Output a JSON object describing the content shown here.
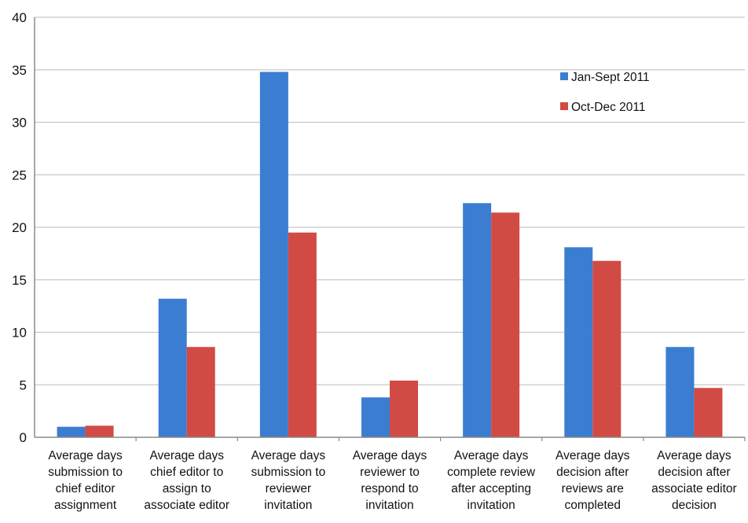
{
  "chart_data": {
    "type": "bar",
    "title": "",
    "xlabel": "",
    "ylabel": "",
    "ylim": [
      0,
      40
    ],
    "yticks": [
      0,
      5,
      10,
      15,
      20,
      25,
      30,
      35,
      40
    ],
    "grid": true,
    "legend_position": "top-right",
    "categories": [
      [
        "Average days",
        "submission to",
        "chief editor",
        "assignment"
      ],
      [
        "Average days",
        "chief editor to",
        "assign to",
        "associate editor"
      ],
      [
        "Average days",
        "submission to",
        "reviewer",
        "invitation"
      ],
      [
        "Average days",
        "reviewer to",
        "respond to",
        "invitation"
      ],
      [
        "Average days",
        "complete review",
        "after accepting",
        "invitation"
      ],
      [
        "Average days",
        "decision after",
        "reviews are",
        "completed"
      ],
      [
        "Average days",
        "decision after",
        "associate editor",
        "decision"
      ]
    ],
    "series": [
      {
        "name": "Jan-Sept 2011",
        "color": "#3b7dd1",
        "values": [
          1.0,
          13.2,
          34.8,
          3.8,
          22.3,
          18.1,
          8.6
        ]
      },
      {
        "name": "Oct-Dec 2011",
        "color": "#d24a44",
        "values": [
          1.1,
          8.6,
          19.5,
          5.4,
          21.4,
          16.8,
          4.7
        ]
      }
    ]
  }
}
